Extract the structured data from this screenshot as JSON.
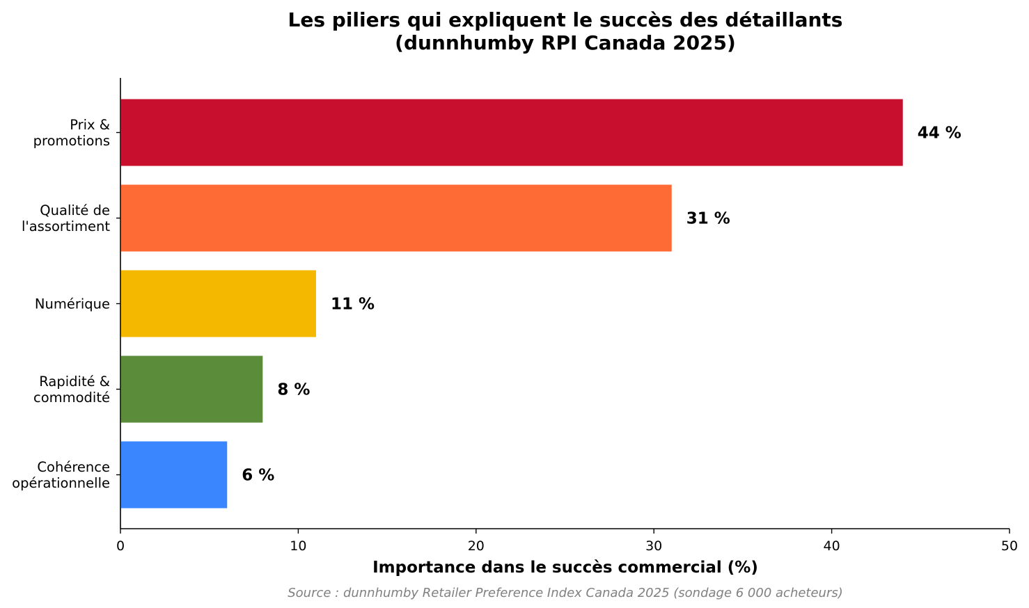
{
  "chart_data": {
    "type": "bar",
    "orientation": "horizontal",
    "title_lines": [
      "Les piliers qui expliquent le succès des détaillants",
      "(dunnhumby RPI Canada 2025)"
    ],
    "categories": [
      [
        "Prix &",
        "promotions"
      ],
      [
        "Qualité de",
        "l'assortiment"
      ],
      [
        "Numérique"
      ],
      [
        "Rapidité &",
        "commodité"
      ],
      [
        "Cohérence",
        "opérationnelle"
      ]
    ],
    "values": [
      44,
      31,
      11,
      8,
      6
    ],
    "value_labels": [
      "44 %",
      "31 %",
      "11 %",
      "8 %",
      "6 %"
    ],
    "colors": [
      "#c8102e",
      "#ff6b35",
      "#f5b800",
      "#5b8c3a",
      "#3a86ff"
    ],
    "xlabel": "Importance dans le succès commercial (%)",
    "ylabel": "",
    "xlim": [
      0,
      50
    ],
    "xticks": [
      0,
      10,
      20,
      30,
      40,
      50
    ],
    "grid": false,
    "legend": "none",
    "source": "Source : dunnhumby Retailer Preference Index Canada 2025 (sondage 6 000 acheteurs)"
  }
}
